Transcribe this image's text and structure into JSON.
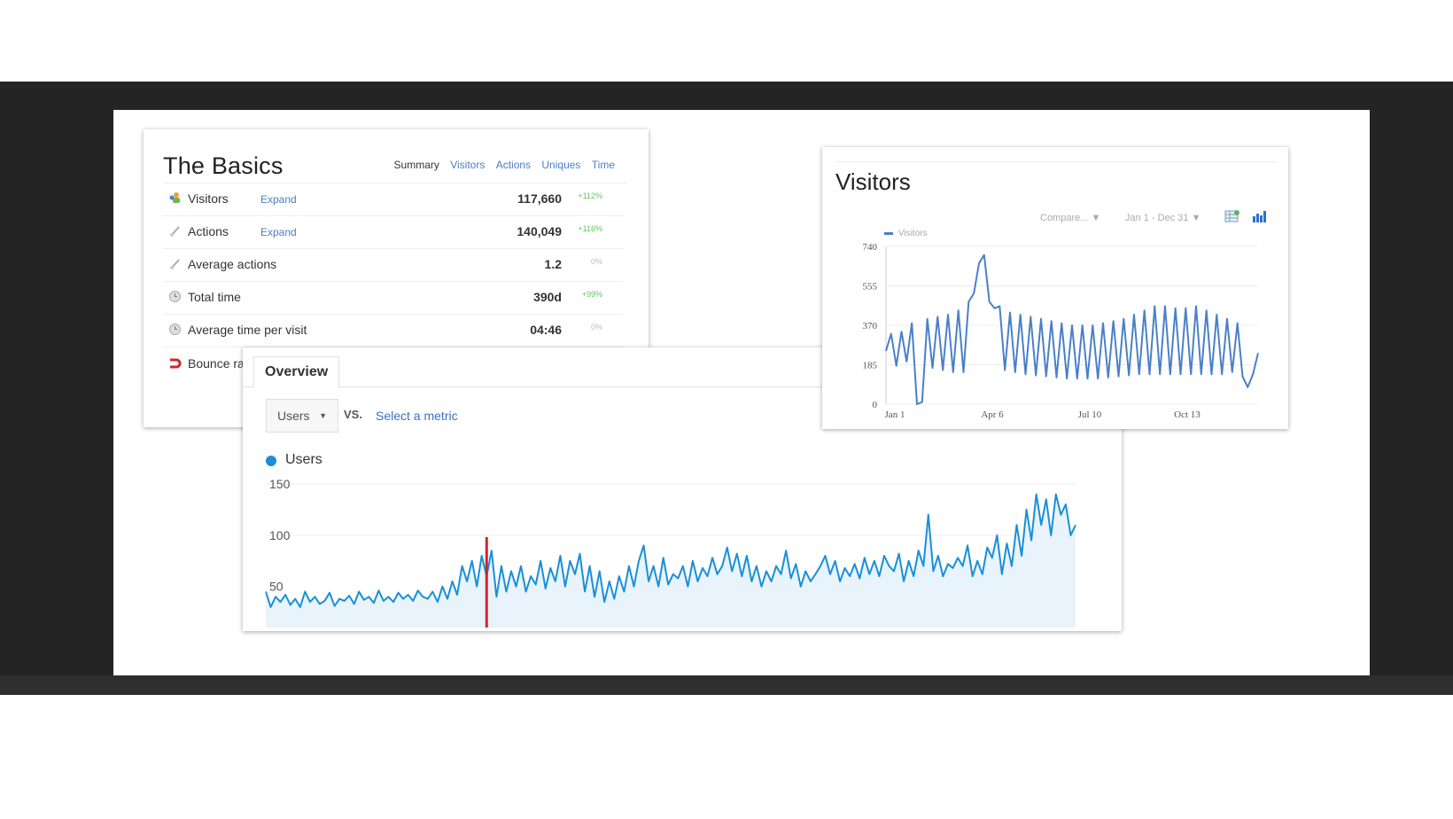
{
  "basics": {
    "title": "The Basics",
    "tabs": [
      "Summary",
      "Visitors",
      "Actions",
      "Uniques",
      "Time"
    ],
    "rows": [
      {
        "label": "Visitors",
        "expand": "Expand",
        "value": "117,660",
        "change": "+112%"
      },
      {
        "label": "Actions",
        "expand": "Expand",
        "value": "140,049",
        "change": "+116%"
      },
      {
        "label": "Average actions",
        "value": "1.2",
        "change": "0%"
      },
      {
        "label": "Total time",
        "value": "390d",
        "change": "+99%"
      },
      {
        "label": "Average time per visit",
        "value": "04:46",
        "change": "0%"
      },
      {
        "label": "Bounce ra"
      }
    ]
  },
  "overview": {
    "tab": "Overview",
    "metric_select": "Users",
    "vs": "VS.",
    "select_metric": "Select a metric",
    "legend": "Users"
  },
  "visitors": {
    "title": "Visitors",
    "compare": "Compare... ▼",
    "date_range": "Jan 1 - Dec 31 ▼",
    "legend": "Visitors"
  },
  "colors": {
    "users_line": "#1a8fd8",
    "users_fill": "#e8f3fb",
    "marker": "#d0262a",
    "visitors_line": "#4a80c8",
    "link": "#4a7fc6",
    "positive": "#5fc45f"
  },
  "chart_data": [
    {
      "type": "line",
      "title": "Visitors",
      "series": [
        {
          "name": "Visitors"
        }
      ],
      "x_ticks": [
        "Jan 1",
        "Apr 6",
        "Jul 10",
        "Oct 13"
      ],
      "y_ticks": [
        0,
        185,
        370,
        555,
        740
      ],
      "ylim": [
        0,
        740
      ],
      "grid": true,
      "legend": "top-left",
      "x": [
        0,
        5,
        10,
        15,
        20,
        25,
        30,
        35,
        40,
        45,
        50,
        55,
        60,
        65,
        70,
        75,
        80,
        85,
        90,
        95,
        100,
        105,
        110,
        115,
        120,
        125,
        130,
        135,
        140,
        145,
        150,
        155,
        160,
        165,
        170,
        175,
        180,
        185,
        190,
        195,
        200,
        205,
        210,
        215,
        220,
        225,
        230,
        235,
        240,
        245,
        250,
        255,
        260,
        265,
        270,
        275,
        280,
        285,
        290,
        295,
        300,
        305,
        310,
        315,
        320,
        325,
        330,
        335,
        340,
        345,
        350,
        355,
        360
      ],
      "values": [
        250,
        330,
        180,
        340,
        200,
        380,
        0,
        10,
        400,
        170,
        410,
        160,
        420,
        150,
        440,
        150,
        480,
        520,
        660,
        700,
        480,
        450,
        460,
        160,
        430,
        150,
        420,
        140,
        410,
        135,
        400,
        130,
        390,
        125,
        380,
        120,
        370,
        120,
        370,
        120,
        370,
        120,
        380,
        125,
        390,
        130,
        400,
        135,
        420,
        140,
        440,
        140,
        460,
        140,
        460,
        140,
        450,
        140,
        450,
        140,
        460,
        140,
        440,
        140,
        420,
        140,
        400,
        150,
        380,
        130,
        80,
        140,
        240
      ]
    },
    {
      "type": "area",
      "series": [
        {
          "name": "Users"
        }
      ],
      "y_ticks": [
        50,
        100,
        150
      ],
      "ylim": [
        10,
        150
      ],
      "marker_index": 45,
      "values": [
        45,
        30,
        40,
        35,
        42,
        32,
        38,
        30,
        45,
        35,
        40,
        33,
        36,
        44,
        31,
        38,
        36,
        41,
        33,
        45,
        37,
        40,
        34,
        46,
        36,
        40,
        35,
        44,
        38,
        42,
        36,
        46,
        40,
        38,
        45,
        35,
        50,
        38,
        55,
        42,
        70,
        55,
        75,
        50,
        80,
        60,
        85,
        40,
        70,
        45,
        65,
        50,
        70,
        45,
        60,
        52,
        75,
        48,
        68,
        55,
        80,
        50,
        75,
        62,
        82,
        45,
        70,
        40,
        65,
        35,
        55,
        38,
        60,
        45,
        70,
        50,
        75,
        90,
        55,
        70,
        50,
        78,
        52,
        62,
        58,
        70,
        50,
        75,
        55,
        68,
        60,
        78,
        62,
        70,
        88,
        65,
        82,
        60,
        80,
        55,
        70,
        50,
        65,
        55,
        70,
        62,
        85,
        58,
        72,
        50,
        65,
        55,
        62,
        70,
        80,
        62,
        75,
        55,
        68,
        60,
        72,
        58,
        78,
        62,
        75,
        60,
        80,
        70,
        65,
        82,
        55,
        75,
        60,
        85,
        70,
        120,
        65,
        80,
        60,
        72,
        68,
        78,
        70,
        90,
        60,
        75,
        62,
        88,
        78,
        100,
        62,
        92,
        70,
        110,
        80,
        125,
        95,
        140,
        110,
        135,
        100,
        140,
        120,
        130,
        100,
        110
      ]
    }
  ]
}
